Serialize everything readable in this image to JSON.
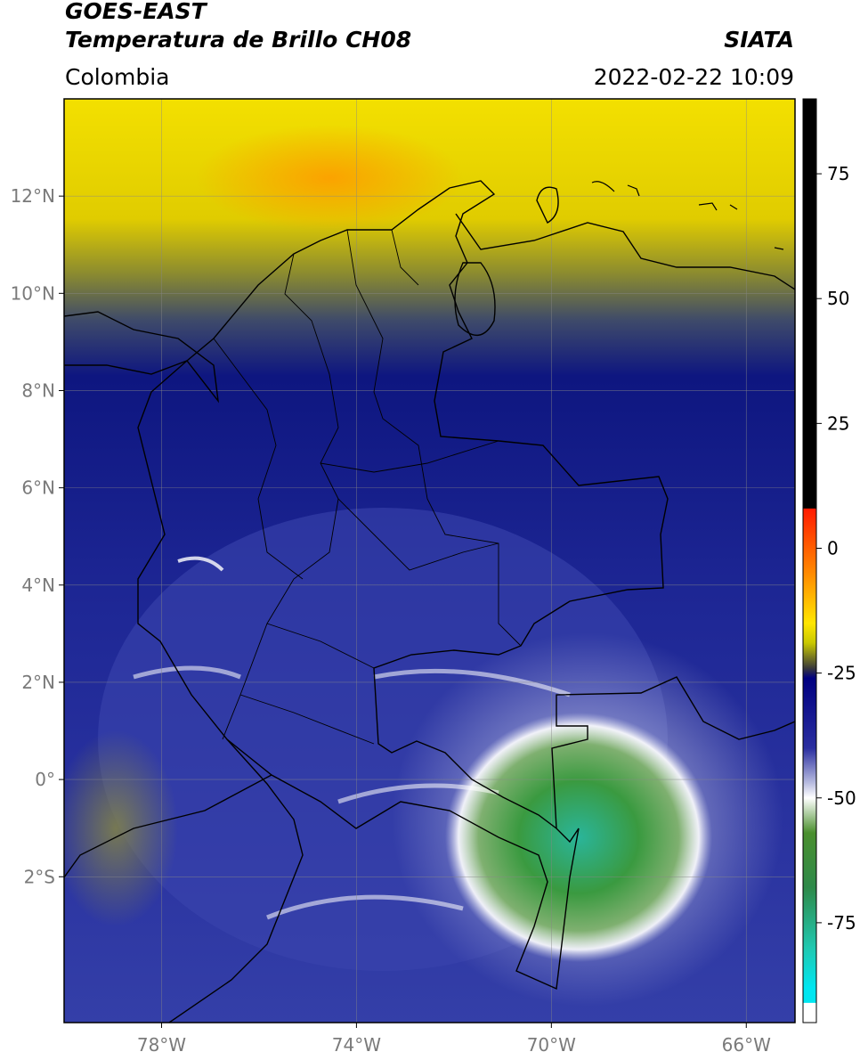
{
  "header": {
    "satellite": "GOES-EAST",
    "product": "Temperatura de Brillo CH08",
    "region": "Colombia",
    "brand": "SIATA",
    "datetime": "2022-02-22 10:09"
  },
  "map": {
    "lon_range": [
      -80,
      -65
    ],
    "lat_range": [
      -5,
      14
    ],
    "lat_ticks": [
      {
        "value": 12,
        "label": "12°N"
      },
      {
        "value": 10,
        "label": "10°N"
      },
      {
        "value": 8,
        "label": "8°N"
      },
      {
        "value": 6,
        "label": "6°N"
      },
      {
        "value": 4,
        "label": "4°N"
      },
      {
        "value": 2,
        "label": "2°N"
      },
      {
        "value": 0,
        "label": "0°"
      },
      {
        "value": -2,
        "label": "2°S"
      }
    ],
    "lon_ticks": [
      {
        "value": -78,
        "label": "78°W"
      },
      {
        "value": -74,
        "label": "74°W"
      },
      {
        "value": -70,
        "label": "70°W"
      },
      {
        "value": -66,
        "label": "66°W"
      }
    ],
    "grid": true
  },
  "colorbar": {
    "range": [
      -95,
      90
    ],
    "ticks": [
      {
        "value": 75,
        "label": "75"
      },
      {
        "value": 50,
        "label": "50"
      },
      {
        "value": 25,
        "label": "25"
      },
      {
        "value": 0,
        "label": "0"
      },
      {
        "value": -25,
        "label": "-25"
      },
      {
        "value": -50,
        "label": "-50"
      },
      {
        "value": -75,
        "label": "-75"
      }
    ],
    "stops": [
      {
        "value": 90,
        "color": "#000000"
      },
      {
        "value": 8,
        "color": "#000000"
      },
      {
        "value": 7.9,
        "color": "#ff1a00"
      },
      {
        "value": -5,
        "color": "#ff8a00"
      },
      {
        "value": -15,
        "color": "#ffe600"
      },
      {
        "value": -19,
        "color": "#c8c800"
      },
      {
        "value": -24,
        "color": "#3a3a3a"
      },
      {
        "value": -26,
        "color": "#000080"
      },
      {
        "value": -40,
        "color": "#2a2ea0"
      },
      {
        "value": -47,
        "color": "#b8bce0"
      },
      {
        "value": -50,
        "color": "#ffffff"
      },
      {
        "value": -57,
        "color": "#4a8f2e"
      },
      {
        "value": -68,
        "color": "#2e8a4a"
      },
      {
        "value": -80,
        "color": "#20c8b0"
      },
      {
        "value": -88,
        "color": "#00e6f0"
      },
      {
        "value": -91,
        "color": "#00e6f0"
      },
      {
        "value": -91.1,
        "color": "#ffffff"
      },
      {
        "value": -95,
        "color": "#ffffff"
      }
    ]
  }
}
